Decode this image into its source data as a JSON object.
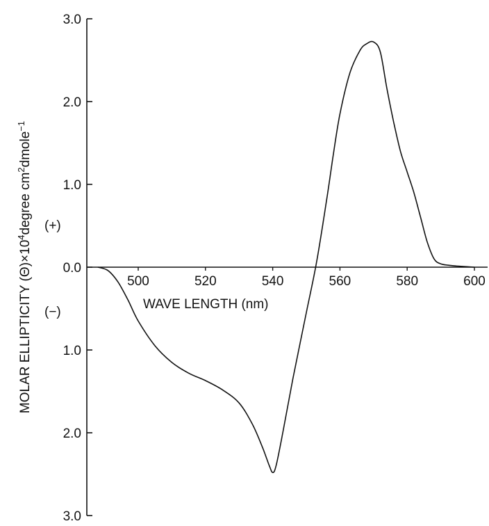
{
  "chart_data": {
    "type": "line",
    "title": "",
    "xlabel": "WAVE LENGTH (nm)",
    "ylabel_parts": {
      "prefix": "MOLAR ELLIPTICITY (",
      "symbol": "Θ",
      "mid": ")×10",
      "exp": "4",
      "units_a": "degree cm",
      "units_sq": "2",
      "units_b": "dmole",
      "units_inv": "−1"
    },
    "xlim": [
      480,
      612
    ],
    "ylim": [
      -3.0,
      3.0
    ],
    "x_ticks": [
      "500",
      "520",
      "540",
      "560",
      "580",
      "600"
    ],
    "y_ticks": [
      {
        "value": 3.0,
        "label": "3.0"
      },
      {
        "value": 2.0,
        "label": "2.0"
      },
      {
        "value": 1.0,
        "label": "1.0"
      },
      {
        "value": 0.0,
        "label": "0.0"
      },
      {
        "value": -1.0,
        "label": "1.0"
      },
      {
        "value": -2.0,
        "label": "2.0"
      },
      {
        "value": -3.0,
        "label": "3.0"
      }
    ],
    "sign_labels": {
      "positive": "(+)",
      "negative": "(−)"
    },
    "grid": false,
    "legend": "none",
    "series": [
      {
        "x": [
          488,
          491,
          494,
          497,
          500,
          505,
          510,
          515,
          520,
          525,
          530,
          534,
          537,
          539,
          540,
          541,
          543,
          546,
          550,
          553,
          556,
          558,
          560,
          563,
          566,
          568,
          570,
          572,
          574,
          576,
          578,
          580,
          582,
          584,
          586,
          588,
          590,
          593,
          596,
          600
        ],
        "y": [
          0.0,
          -0.04,
          -0.18,
          -0.4,
          -0.65,
          -0.95,
          -1.15,
          -1.28,
          -1.37,
          -1.48,
          -1.64,
          -1.9,
          -2.18,
          -2.4,
          -2.48,
          -2.4,
          -2.0,
          -1.35,
          -0.55,
          0.05,
          0.8,
          1.35,
          1.85,
          2.35,
          2.62,
          2.7,
          2.72,
          2.6,
          2.15,
          1.75,
          1.4,
          1.15,
          0.9,
          0.6,
          0.3,
          0.1,
          0.04,
          0.02,
          0.01,
          0.0
        ]
      }
    ]
  }
}
